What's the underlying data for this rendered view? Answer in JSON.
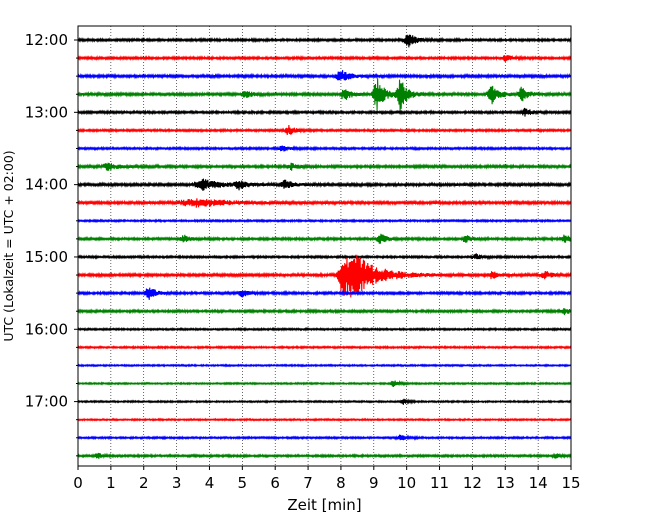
{
  "chart_data": {
    "type": "line",
    "xlabel": "Zeit  [min]",
    "ylabel": "UTC (Lokalzeit = UTC + 02:00)",
    "xlim": [
      0,
      15
    ],
    "x_ticks": [
      "0",
      "1",
      "2",
      "3",
      "4",
      "5",
      "6",
      "7",
      "8",
      "9",
      "10",
      "11",
      "12",
      "13",
      "14",
      "15"
    ],
    "grid": "vertical dotted",
    "trace_minutes": 15,
    "start_time": "12:00",
    "y_tick_labels": [
      "12:00",
      "13:00",
      "14:00",
      "15:00",
      "16:00",
      "17:00"
    ],
    "colors": [
      "#000000",
      "#ff0000",
      "#0000ff",
      "#008000"
    ],
    "traces": [
      {
        "time": "12:00",
        "color": "#000000",
        "noise": 0.9,
        "events": [
          {
            "t": 10.05,
            "a": 7,
            "d": 0.35
          }
        ]
      },
      {
        "time": "12:15",
        "color": "#ff0000",
        "noise": 0.9,
        "events": [
          {
            "t": 13.0,
            "a": 3,
            "d": 0.3
          }
        ]
      },
      {
        "time": "12:30",
        "color": "#0000ff",
        "noise": 1.0,
        "events": [
          {
            "t": 8.0,
            "a": 6,
            "d": 0.4
          }
        ]
      },
      {
        "time": "12:45",
        "color": "#008000",
        "noise": 1.0,
        "events": [
          {
            "t": 5.1,
            "a": 4,
            "d": 0.3
          },
          {
            "t": 8.1,
            "a": 7,
            "d": 0.3
          },
          {
            "t": 9.1,
            "a": 16,
            "d": 0.35
          },
          {
            "t": 9.8,
            "a": 15,
            "d": 0.35
          },
          {
            "t": 12.6,
            "a": 9,
            "d": 0.35
          },
          {
            "t": 13.5,
            "a": 7,
            "d": 0.3
          }
        ]
      },
      {
        "time": "13:00",
        "color": "#000000",
        "noise": 0.9,
        "events": [
          {
            "t": 13.6,
            "a": 4,
            "d": 0.3
          }
        ]
      },
      {
        "time": "13:15",
        "color": "#ff0000",
        "noise": 0.8,
        "events": [
          {
            "t": 6.4,
            "a": 5,
            "d": 0.3
          }
        ]
      },
      {
        "time": "13:30",
        "color": "#0000ff",
        "noise": 0.8,
        "events": [
          {
            "t": 6.2,
            "a": 3,
            "d": 0.3
          }
        ]
      },
      {
        "time": "13:45",
        "color": "#008000",
        "noise": 1.0,
        "events": [
          {
            "t": 0.9,
            "a": 4,
            "d": 0.4
          },
          {
            "t": 6.5,
            "a": 3,
            "d": 0.3
          }
        ]
      },
      {
        "time": "14:00",
        "color": "#000000",
        "noise": 1.0,
        "events": [
          {
            "t": 3.8,
            "a": 5,
            "d": 0.8
          },
          {
            "t": 4.9,
            "a": 4,
            "d": 0.4
          },
          {
            "t": 6.3,
            "a": 4,
            "d": 0.4
          }
        ]
      },
      {
        "time": "14:15",
        "color": "#ff0000",
        "noise": 1.0,
        "events": [
          {
            "t": 3.6,
            "a": 4,
            "d": 1.6
          }
        ]
      },
      {
        "time": "14:30",
        "color": "#0000ff",
        "noise": 0.7,
        "events": []
      },
      {
        "time": "14:45",
        "color": "#008000",
        "noise": 0.9,
        "events": [
          {
            "t": 3.2,
            "a": 4,
            "d": 0.3
          },
          {
            "t": 9.2,
            "a": 5,
            "d": 0.3
          },
          {
            "t": 11.8,
            "a": 4,
            "d": 0.3
          },
          {
            "t": 14.8,
            "a": 4,
            "d": 0.3
          }
        ]
      },
      {
        "time": "15:00",
        "color": "#000000",
        "noise": 0.8,
        "events": [
          {
            "t": 12.1,
            "a": 3,
            "d": 0.3
          }
        ]
      },
      {
        "time": "15:15",
        "color": "#ff0000",
        "noise": 1.0,
        "events": [
          {
            "t": 8.05,
            "a": 13,
            "d": 0.4
          },
          {
            "t": 8.4,
            "a": 20,
            "d": 1.1
          },
          {
            "t": 12.6,
            "a": 4,
            "d": 0.3
          },
          {
            "t": 14.2,
            "a": 4,
            "d": 0.3
          }
        ]
      },
      {
        "time": "15:30",
        "color": "#0000ff",
        "noise": 0.9,
        "events": [
          {
            "t": 2.15,
            "a": 7,
            "d": 0.3
          },
          {
            "t": 5.0,
            "a": 4,
            "d": 0.3
          }
        ]
      },
      {
        "time": "15:45",
        "color": "#008000",
        "noise": 0.9,
        "events": [
          {
            "t": 14.8,
            "a": 3,
            "d": 0.3
          }
        ]
      },
      {
        "time": "16:00",
        "color": "#000000",
        "noise": 0.7,
        "events": []
      },
      {
        "time": "16:15",
        "color": "#ff0000",
        "noise": 0.7,
        "events": []
      },
      {
        "time": "16:30",
        "color": "#0000ff",
        "noise": 0.6,
        "events": []
      },
      {
        "time": "16:45",
        "color": "#008000",
        "noise": 0.6,
        "events": [
          {
            "t": 9.6,
            "a": 4,
            "d": 0.2
          }
        ]
      },
      {
        "time": "17:00",
        "color": "#000000",
        "noise": 0.6,
        "events": [
          {
            "t": 9.9,
            "a": 3,
            "d": 0.2
          }
        ]
      },
      {
        "time": "17:15",
        "color": "#ff0000",
        "noise": 0.6,
        "events": []
      },
      {
        "time": "17:30",
        "color": "#0000ff",
        "noise": 0.7,
        "events": [
          {
            "t": 9.8,
            "a": 3,
            "d": 0.3
          }
        ]
      },
      {
        "time": "17:45",
        "color": "#008000",
        "noise": 0.8,
        "events": [
          {
            "t": 0.6,
            "a": 3,
            "d": 0.2
          },
          {
            "t": 14.5,
            "a": 3,
            "d": 0.2
          }
        ]
      }
    ]
  }
}
